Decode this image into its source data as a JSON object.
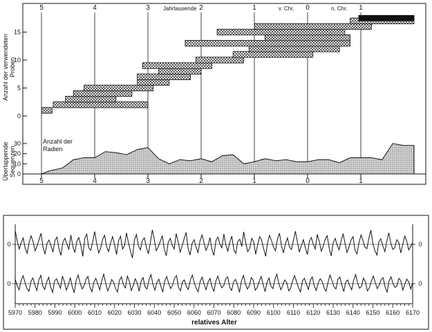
{
  "chart_data": [
    {
      "type": "area",
      "top_labels": {
        "numbers": [
          "5",
          "4",
          "3",
          "2",
          "1",
          "0",
          "1"
        ],
        "jahrtausende": "Jahrtausende",
        "vchr": "v. Chr.",
        "nchr": "n. Chr."
      },
      "ylabel_samples": [
        "Anzahl der verwendeten",
        "Proben"
      ],
      "ylabel_overlap": [
        "Überlappende",
        "Sequenzen"
      ],
      "samples_ticks": [
        "15",
        "10",
        "5",
        "0"
      ],
      "overlap_ticks": [
        "30",
        "20",
        "10",
        "0"
      ],
      "radii_label": [
        "Anzahl der",
        "Radien"
      ],
      "bars": [
        {
          "rank": 1,
          "start": -5000,
          "end": -4800
        },
        {
          "rank": 2,
          "start": -4780,
          "end": -3000
        },
        {
          "rank": 3,
          "start": -4550,
          "end": -3600
        },
        {
          "rank": 4,
          "start": -4400,
          "end": -3300
        },
        {
          "rank": 5,
          "start": -4200,
          "end": -2900
        },
        {
          "rank": 6,
          "start": -3200,
          "end": -2600
        },
        {
          "rank": 7,
          "start": -3200,
          "end": -2200
        },
        {
          "rank": 8,
          "start": -2800,
          "end": -2000
        },
        {
          "rank": 9,
          "start": -3100,
          "end": -1800
        },
        {
          "rank": 10,
          "start": -2100,
          "end": -1200
        },
        {
          "rank": 11,
          "start": -1400,
          "end": 100
        },
        {
          "rank": 12,
          "start": -1100,
          "end": 600
        },
        {
          "rank": 13,
          "start": -2300,
          "end": 800
        },
        {
          "rank": 14,
          "start": -800,
          "end": 800
        },
        {
          "rank": 15,
          "start": -1700,
          "end": 700
        },
        {
          "rank": 16,
          "start": -1000,
          "end": 1200
        },
        {
          "rank": 17,
          "start": 800,
          "end": 2000
        }
      ],
      "dark_bar": {
        "start": 700,
        "end": 2000
      },
      "overlap_series": {
        "x": [
          -5000,
          -4850,
          -4600,
          -4400,
          -4200,
          -4000,
          -3800,
          -3600,
          -3400,
          -3200,
          -3000,
          -2800,
          -2600,
          -2400,
          -2200,
          -2000,
          -1800,
          -1600,
          -1400,
          -1200,
          -1000,
          -800,
          -600,
          -400,
          -200,
          0,
          200,
          400,
          600,
          800,
          1000,
          1200,
          1400,
          1600,
          1800,
          2000
        ],
        "values": [
          0,
          3,
          6,
          14,
          16,
          16,
          22,
          21,
          19,
          24,
          26,
          15,
          10,
          14,
          13,
          15,
          12,
          18,
          19,
          10,
          12,
          15,
          13,
          14,
          12,
          12,
          14,
          14,
          11,
          16,
          16,
          16,
          14,
          30,
          28,
          28
        ]
      }
    },
    {
      "type": "line",
      "x_range": [
        5970,
        6170
      ],
      "xticks": [
        "5970",
        "5980",
        "5990",
        "6000",
        "6010",
        "6020",
        "6030",
        "6040",
        "6050",
        "6060",
        "6070",
        "6080",
        "6090",
        "6100",
        "6110",
        "6120",
        "6130",
        "6140",
        "6150",
        "6160",
        "6170"
      ],
      "xlabel": "relatives Alter",
      "zero_label": "0",
      "series_top": [
        3.2,
        0.8,
        -1.1,
        0.3,
        1.5,
        -0.9,
        -2.1,
        0.4,
        2.0,
        0.6,
        -1.5,
        -0.4,
        1.1,
        2.6,
        -0.7,
        -2.3,
        0.2,
        1.0,
        -0.3,
        -1.8,
        0.9,
        1.7,
        -1.0,
        -2.6,
        0.5,
        1.4,
        0.1,
        -1.2,
        2.2,
        -0.5,
        -1.9,
        0.7,
        1.6,
        -0.2,
        -2.8,
        1.3,
        2.4,
        -0.8,
        -1.4,
        0.6,
        3.0,
        0.2,
        -2.0,
        -0.9,
        1.2,
        2.1,
        -0.6,
        -1.7,
        0.4,
        1.8,
        -0.1,
        -2.4,
        0.8,
        1.9,
        -1.1,
        -0.3,
        2.7,
        0.3,
        -1.6,
        -3.2,
        1.0,
        2.3,
        -0.4,
        -1.3,
        0.9,
        1.5,
        -0.7,
        -2.2,
        0.3,
        3.4,
        1.1,
        -1.5,
        -0.6,
        0.7,
        2.0,
        -1.0,
        -2.7,
        0.5,
        1.4,
        -0.2,
        -1.1,
        2.5,
        0.6,
        -1.8,
        -0.4,
        1.3,
        2.8,
        -0.9,
        -2.5,
        0.2,
        1.1,
        -0.6,
        -1.9,
        0.8,
        2.2,
        0.4,
        -1.4,
        -0.3,
        1.6,
        -1.2,
        -2.6,
        0.9,
        1.7,
        0.1,
        -0.8,
        2.4,
        -0.2,
        -1.6,
        0.5,
        1.9,
        -1.3,
        -2.1,
        0.7,
        1.2,
        -0.5,
        2.9,
        0.3,
        -1.7,
        -0.9,
        1.4,
        0.6,
        -2.3,
        -0.1,
        1.8,
        1.0,
        -1.0,
        -2.8,
        0.4,
        2.1,
        0.8,
        -0.7,
        -1.5,
        1.3,
        2.6,
        -0.4,
        -2.0,
        0.2,
        1.5,
        -0.6,
        -1.2,
        0.9,
        3.1,
        0.5,
        -1.8,
        -0.3,
        1.1,
        -0.8,
        -2.4,
        0.6,
        1.6,
        0.0,
        -1.1,
        2.3,
        0.7,
        -1.6,
        -0.5,
        1.2,
        2.0,
        -0.9,
        -2.7,
        0.3,
        1.4,
        -0.2,
        -1.3,
        0.8,
        2.5,
        0.1,
        -1.9,
        -0.6,
        1.0,
        1.8,
        -1.4,
        -2.2,
        0.4,
        2.2,
        0.9,
        -0.7,
        -1.0,
        1.5,
        3.3,
        0.2,
        -1.5,
        -2.5,
        0.6,
        1.3,
        -0.4,
        -1.7,
        0.7,
        2.7,
        0.3,
        -1.2,
        -0.8,
        1.1,
        0.5,
        -2.0,
        -0.1,
        1.9,
        0.8,
        -1.3,
        -0.5,
        0.4
      ],
      "series_bottom": [
        1.2,
        -0.5,
        -1.6,
        0.8,
        2.1,
        0.3,
        -1.3,
        -2.0,
        0.6,
        1.5,
        -0.4,
        -1.8,
        1.0,
        2.2,
        -0.6,
        -1.5,
        0.4,
        1.7,
        -0.9,
        -2.3,
        0.7,
        1.3,
        0.0,
        -1.2,
        2.0,
        0.5,
        -1.7,
        -0.3,
        1.6,
        -0.8,
        -2.4,
        0.9,
        2.3,
        0.2,
        -1.4,
        -0.6,
        1.2,
        1.9,
        -1.0,
        -2.1,
        0.5,
        1.4,
        -0.2,
        -1.6,
        0.8,
        2.5,
        0.1,
        -1.9,
        -0.7,
        1.1,
        0.4,
        -1.3,
        -2.2,
        0.9,
        1.8,
        -0.3,
        -1.1,
        2.0,
        0.6,
        -1.8,
        -0.5,
        1.3,
        0.2,
        -2.0,
        0.7,
        1.6,
        -0.9,
        -1.4,
        1.0,
        2.4,
        -0.2,
        -1.7,
        0.3,
        1.2,
        -0.6,
        -2.2,
        0.8,
        1.9,
        0.1,
        -1.3,
        -0.4,
        1.5,
        2.1,
        -1.0,
        -1.9,
        0.5,
        1.0,
        -0.7,
        -1.5,
        0.9,
        2.3,
        0.3,
        -1.2,
        -2.1,
        0.6,
        1.7,
        -0.1,
        -1.6,
        0.4,
        1.4,
        -0.8,
        -2.0,
        0.7,
        2.0,
        0.2,
        -1.1,
        -0.5,
        1.3,
        1.8,
        -0.9,
        -1.8,
        0.5,
        1.1,
        -0.3,
        -2.3,
        0.8,
        2.2,
        0.0,
        -1.4,
        -0.6,
        1.6,
        0.9,
        -1.7,
        -1.0,
        0.6,
        1.9,
        -0.2,
        -2.1,
        0.4,
        1.5,
        -0.7,
        -1.3,
        1.1,
        2.5,
        0.1,
        -1.6,
        -0.4,
        1.0,
        0.3,
        -1.9,
        -1.2,
        0.8,
        2.1,
        0.5,
        -1.0,
        -2.2,
        0.7,
        1.4,
        -0.1,
        -1.5,
        0.9,
        1.8,
        -0.6,
        -1.8,
        0.2,
        1.3,
        0.6,
        -1.1,
        -2.0,
        0.4,
        2.3,
        0.8,
        -0.8,
        -1.4,
        1.2,
        1.7,
        -0.3,
        -2.1,
        0.5,
        1.0,
        -0.5,
        -1.6,
        0.9,
        2.4,
        0.2,
        -1.2,
        -0.7,
        1.5,
        0.4,
        -1.9,
        -1.1,
        0.6,
        2.0,
        0.3,
        -1.3,
        -0.4,
        1.1,
        1.6,
        -0.9,
        -2.2,
        0.7,
        1.8,
        0.1,
        -1.0,
        -0.6,
        1.4,
        0.8,
        -1.7,
        -0.2,
        1.2,
        0.5,
        -1.4,
        0.2
      ],
      "ylim": [
        -4,
        4
      ]
    }
  ]
}
